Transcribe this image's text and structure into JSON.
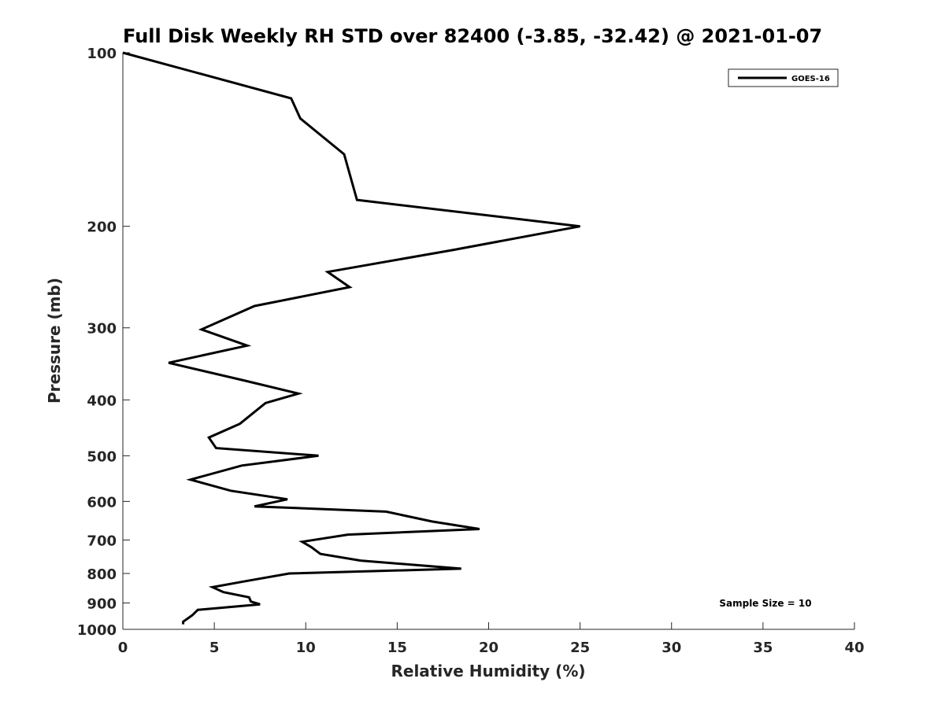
{
  "chart_data": {
    "type": "line",
    "title": "Full Disk Weekly RH STD over 82400 (-3.85, -32.42) @ 2021-01-07",
    "xlabel": "Relative Humidity (%)",
    "ylabel": "Pressure (mb)",
    "xlim": [
      0,
      40
    ],
    "ylim": [
      100,
      1000
    ],
    "yscale": "log",
    "yreversed": true,
    "grid": false,
    "legend_position": "top-right",
    "xticks": [
      0,
      5,
      10,
      15,
      20,
      25,
      30,
      35,
      40
    ],
    "xtick_labels": [
      "0",
      "5",
      "10",
      "15",
      "20",
      "25",
      "30",
      "35",
      "40"
    ],
    "yticks": [
      100,
      200,
      300,
      400,
      500,
      600,
      700,
      800,
      900,
      1000
    ],
    "ytick_labels": [
      "100",
      "200",
      "300",
      "400",
      "500",
      "600",
      "700",
      "800",
      "900",
      "1000"
    ],
    "annotation": "Sample Size = 10",
    "series": [
      {
        "name": "GOES-16",
        "color": "#000000",
        "x": [
          0,
          9.2,
          9.7,
          12.1,
          12.8,
          25.0,
          18.0,
          11.2,
          12.4,
          7.2,
          4.3,
          6.8,
          2.5,
          6.6,
          9.6,
          7.8,
          6.4,
          4.7,
          5.1,
          10.7,
          6.5,
          3.7,
          5.9,
          9.0,
          7.2,
          14.4,
          16.9,
          19.5,
          12.3,
          9.8,
          10.3,
          10.8,
          13.0,
          18.5,
          9.1,
          6.7,
          4.9,
          5.5,
          6.9,
          7.0,
          7.5,
          4.1,
          3.8,
          3.3,
          3.3
        ],
        "y": [
          100,
          120,
          130,
          150,
          180,
          200,
          220,
          240,
          255,
          275,
          302,
          322,
          345,
          370,
          390,
          405,
          440,
          465,
          485,
          500,
          520,
          550,
          575,
          595,
          612,
          625,
          650,
          670,
          685,
          705,
          720,
          740,
          760,
          785,
          800,
          825,
          845,
          862,
          880,
          895,
          905,
          925,
          945,
          970,
          980
        ]
      }
    ]
  }
}
